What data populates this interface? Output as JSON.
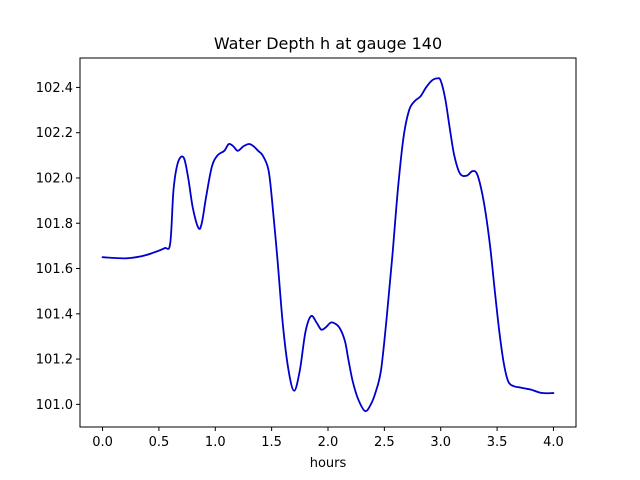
{
  "chart_data": {
    "type": "line",
    "title": "Water Depth h at gauge 140",
    "xlabel": "hours",
    "ylabel": "",
    "xlim": [
      -0.2,
      4.2
    ],
    "ylim": [
      100.9,
      102.53
    ],
    "xticks": [
      0.0,
      0.5,
      1.0,
      1.5,
      2.0,
      2.5,
      3.0,
      3.5,
      4.0
    ],
    "xtick_labels": [
      "0.0",
      "0.5",
      "1.0",
      "1.5",
      "2.0",
      "2.5",
      "3.0",
      "3.5",
      "4.0"
    ],
    "yticks": [
      101.0,
      101.2,
      101.4,
      101.6,
      101.8,
      102.0,
      102.2,
      102.4
    ],
    "ytick_labels": [
      "101.0",
      "101.2",
      "101.4",
      "101.6",
      "101.8",
      "102.0",
      "102.2",
      "102.4"
    ],
    "grid": false,
    "line_color": "#0000cc",
    "series": [
      {
        "x": [
          0.0,
          0.2,
          0.35,
          0.45,
          0.55,
          0.6,
          0.63,
          0.67,
          0.72,
          0.76,
          0.8,
          0.85,
          0.88,
          0.92,
          0.97,
          1.02,
          1.08,
          1.12,
          1.16,
          1.2,
          1.25,
          1.3,
          1.34,
          1.38,
          1.42,
          1.47,
          1.5,
          1.55,
          1.6,
          1.65,
          1.7,
          1.75,
          1.8,
          1.85,
          1.9,
          1.94,
          1.98,
          2.02,
          2.05,
          2.1,
          2.15,
          2.18,
          2.22,
          2.27,
          2.33,
          2.38,
          2.42,
          2.47,
          2.52,
          2.57,
          2.62,
          2.67,
          2.72,
          2.77,
          2.82,
          2.87,
          2.92,
          2.97,
          3.0,
          3.04,
          3.08,
          3.12,
          3.17,
          3.23,
          3.28,
          3.32,
          3.36,
          3.4,
          3.44,
          3.48,
          3.52,
          3.56,
          3.6,
          3.65,
          3.7,
          3.75,
          3.8,
          3.9,
          4.0
        ],
        "y": [
          101.65,
          101.645,
          101.655,
          101.67,
          101.69,
          101.71,
          101.95,
          102.07,
          102.09,
          102.0,
          101.87,
          101.78,
          101.8,
          101.92,
          102.05,
          102.1,
          102.12,
          102.15,
          102.14,
          102.12,
          102.14,
          102.15,
          102.14,
          102.12,
          102.1,
          102.04,
          101.92,
          101.65,
          101.35,
          101.15,
          101.06,
          101.15,
          101.32,
          101.39,
          101.36,
          101.33,
          101.34,
          101.36,
          101.36,
          101.34,
          101.28,
          101.2,
          101.1,
          101.02,
          100.97,
          101.0,
          101.05,
          101.15,
          101.38,
          101.65,
          101.95,
          102.18,
          102.3,
          102.34,
          102.36,
          102.4,
          102.43,
          102.44,
          102.43,
          102.35,
          102.22,
          102.1,
          102.02,
          102.01,
          102.03,
          102.02,
          101.95,
          101.84,
          101.69,
          101.5,
          101.32,
          101.18,
          101.1,
          101.08,
          101.075,
          101.07,
          101.065,
          101.05,
          101.05
        ]
      }
    ]
  }
}
